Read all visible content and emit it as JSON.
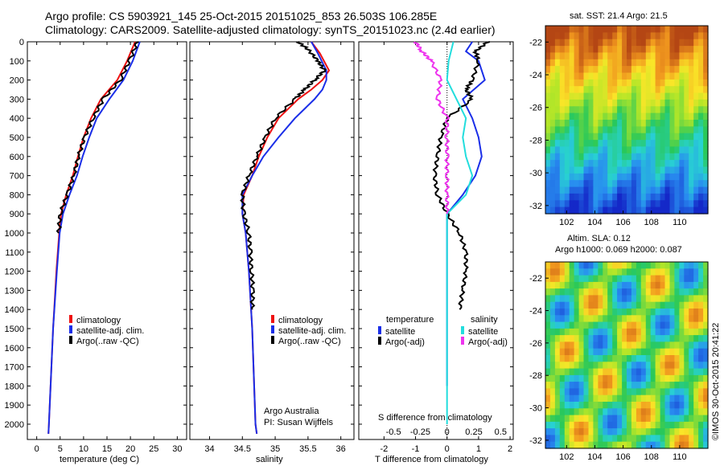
{
  "header": {
    "line1": "Argo profile: CS 5903921_145 25-Oct-2015 20151025_853 26.503S 106.285E",
    "line2": "Climatology: CARS2009. Satellite-adjusted climatology: synTS_20151023.nc (2.4d earlier)"
  },
  "colors": {
    "climatology": "#ee1111",
    "satellite": "#1a2ee8",
    "argo": "#000000",
    "salinity_sat": "#22dddd",
    "salinity_argo": "#ee33ee"
  },
  "annotations": {
    "pi_line1": "Argo Australia",
    "pi_line2": "PI: Susan Wijffels",
    "credit": "©IMOS 30-Oct-2015 20:41:22",
    "sst_title": "sat. SST: 21.4  Argo: 21.5",
    "sla_title1": "Altim. SLA: 0.12",
    "sla_title2": "Argo h1000: 0.069 h2000: 0.087"
  },
  "chart_data": [
    {
      "type": "line",
      "xlabel": "temperature (deg C)",
      "ylabel": "",
      "xlim": [
        -2,
        32
      ],
      "ylim": [
        2080,
        0
      ],
      "xticks": [
        0,
        5,
        10,
        15,
        20,
        25,
        30
      ],
      "yticks": [
        0,
        100,
        200,
        300,
        400,
        500,
        600,
        700,
        800,
        900,
        1000,
        1100,
        1200,
        1300,
        1400,
        1500,
        1600,
        1700,
        1800,
        1900,
        2000
      ],
      "legend": [
        "climatology",
        "satellite-adj. clim.",
        "Argo(..raw -QC)"
      ],
      "series": [
        {
          "name": "climatology",
          "color": "#ee1111",
          "depth": [
            0,
            100,
            200,
            300,
            400,
            500,
            600,
            700,
            800,
            900,
            1000,
            1200,
            1500,
            2000,
            2050
          ],
          "values": [
            21.0,
            19.3,
            17.2,
            13.7,
            11.6,
            10.0,
            8.8,
            7.7,
            6.3,
            5.2,
            4.8,
            4.2,
            3.5,
            2.6,
            2.5
          ]
        },
        {
          "name": "satellite-adj. clim.",
          "color": "#1a2ee8",
          "depth": [
            0,
            100,
            200,
            300,
            400,
            500,
            600,
            700,
            800,
            900,
            1000,
            1200,
            1500,
            2000,
            2050
          ],
          "values": [
            22.0,
            20.5,
            18.5,
            15.5,
            12.8,
            11.2,
            9.8,
            8.6,
            7.0,
            5.6,
            4.9,
            4.3,
            3.5,
            2.6,
            2.5
          ]
        },
        {
          "name": "Argo(..raw -QC)",
          "color": "#000000",
          "depth": [
            0,
            100,
            200,
            300,
            400,
            500,
            600,
            700,
            800,
            900,
            1000
          ],
          "values": [
            21.5,
            19.8,
            17.8,
            14.2,
            12.0,
            10.2,
            8.9,
            7.9,
            6.5,
            5.0,
            4.7
          ]
        }
      ]
    },
    {
      "type": "line",
      "xlabel": "salinity",
      "ylabel": "",
      "xlim": [
        33.7,
        36.2
      ],
      "ylim": [
        2080,
        0
      ],
      "xticks": [
        34,
        34.5,
        35,
        35.5,
        36
      ],
      "legend": [
        "climatology",
        "satellite-adj. clim.",
        "Argo(..raw -QC)"
      ],
      "series": [
        {
          "name": "climatology",
          "color": "#ee1111",
          "depth": [
            0,
            60,
            150,
            200,
            250,
            300,
            400,
            500,
            600,
            700,
            800,
            900,
            1000,
            1200,
            1500,
            2000,
            2050
          ],
          "values": [
            35.55,
            35.68,
            35.82,
            35.72,
            35.55,
            35.35,
            35.05,
            34.88,
            34.75,
            34.65,
            34.52,
            34.5,
            34.55,
            34.6,
            34.65,
            34.7,
            34.72
          ]
        },
        {
          "name": "satellite-adj. clim.",
          "color": "#1a2ee8",
          "depth": [
            0,
            60,
            150,
            200,
            250,
            300,
            400,
            500,
            600,
            700,
            800,
            900,
            1000,
            1200,
            1500,
            2000,
            2050
          ],
          "values": [
            35.55,
            35.65,
            35.78,
            35.78,
            35.72,
            35.6,
            35.3,
            35.05,
            34.82,
            34.65,
            34.5,
            34.5,
            34.55,
            34.6,
            34.65,
            34.7,
            34.72
          ]
        },
        {
          "name": "Argo(..raw -QC)",
          "color": "#000000",
          "depth": [
            0,
            40,
            100,
            150,
            200,
            250,
            300,
            400,
            500,
            600,
            700,
            800,
            900,
            1000,
            1100,
            1200,
            1300,
            1400
          ],
          "values": [
            35.35,
            35.5,
            35.65,
            35.75,
            35.6,
            35.45,
            35.3,
            35.0,
            34.85,
            34.72,
            34.6,
            34.5,
            34.52,
            34.6,
            34.62,
            34.64,
            34.66,
            34.65
          ]
        }
      ]
    },
    {
      "type": "line",
      "xlabel": "T difference from climatology",
      "x2label": "S difference from climatology",
      "xlim": [
        -2.8,
        2.1
      ],
      "ylim": [
        2080,
        0
      ],
      "xticks": [
        -2,
        -1,
        0,
        1,
        2
      ],
      "x2ticks": [
        "-0.5",
        "-0.25",
        "0",
        "0.25",
        "0.5"
      ],
      "legend_headers": [
        "temperature",
        "salinity"
      ],
      "legend": [
        "satellite",
        "Argo(-adj)",
        "satellite",
        "Argo(-adj)"
      ],
      "series": [
        {
          "name": "temperature satellite",
          "color": "#1a2ee8",
          "depth": [
            0,
            50,
            100,
            200,
            300,
            400,
            500,
            600,
            700,
            800,
            900,
            1000,
            1200,
            1500,
            1800
          ],
          "values": [
            0.8,
            0.6,
            1.0,
            1.2,
            0.5,
            0.8,
            1.0,
            1.1,
            0.9,
            0.5,
            0.0,
            0.0,
            0.0,
            0.0,
            0.0
          ]
        },
        {
          "name": "temperature Argo(-adj)",
          "color": "#000000",
          "depth": [
            0,
            50,
            100,
            200,
            250,
            300,
            400,
            500,
            600,
            700,
            800,
            900,
            1000,
            1100,
            1200,
            1300,
            1400
          ],
          "values": [
            1.3,
            0.9,
            1.0,
            0.8,
            0.6,
            0.8,
            0.0,
            -0.2,
            -0.3,
            -0.4,
            -0.3,
            0.0,
            0.4,
            0.6,
            0.6,
            0.5,
            0.4
          ]
        },
        {
          "name": "salinity satellite",
          "color": "#22dddd",
          "depth": [
            0,
            100,
            200,
            300,
            400,
            500,
            600,
            700,
            800,
            900,
            1000,
            1500,
            2000
          ],
          "values": [
            0.2,
            0.05,
            0.0,
            0.3,
            0.6,
            0.5,
            0.6,
            0.8,
            0.6,
            0.0,
            0.0,
            0.0,
            0.0
          ]
        },
        {
          "name": "salinity Argo(-adj)",
          "color": "#ee33ee",
          "depth": [
            0,
            50,
            100,
            200,
            300,
            400,
            500,
            600,
            700,
            800,
            900
          ],
          "values": [
            -1.0,
            -0.8,
            -0.5,
            -0.2,
            -0.3,
            0.0,
            0.0,
            0.0,
            0.0,
            0.0,
            0.0
          ]
        }
      ]
    },
    {
      "type": "heatmap",
      "title": "sat. SST: 21.4  Argo: 21.5",
      "xticks": [
        102,
        104,
        106,
        108,
        110
      ],
      "yticks": [
        -22,
        -24,
        -26,
        -28,
        -30,
        -32
      ]
    },
    {
      "type": "heatmap",
      "title": "Altim. SLA: 0.12  Argo h1000: 0.069 h2000: 0.087",
      "xticks": [
        102,
        104,
        106,
        108,
        110
      ],
      "yticks": [
        -22,
        -24,
        -26,
        -28,
        -30,
        -32
      ]
    }
  ]
}
